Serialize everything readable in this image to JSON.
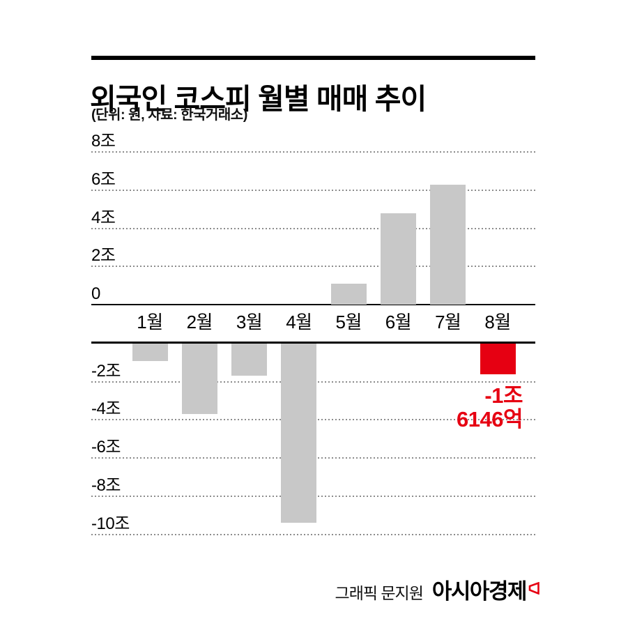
{
  "header": {
    "title": "외국인 코스피 월별 매매 추이",
    "subtitle": "(단위: 원, 자료: 한국거래소)"
  },
  "chart_data": {
    "type": "bar",
    "title": "외국인 코스피 월별 매매 추이",
    "unit_note": "(단위: 원, 자료: 한국거래소)",
    "unit": "조 원 (trillion KRW)",
    "categories": [
      "1월",
      "2월",
      "3월",
      "4월",
      "5월",
      "6월",
      "7월",
      "8월"
    ],
    "values": [
      -0.9,
      -3.7,
      -1.7,
      -9.4,
      1.1,
      4.8,
      6.3,
      -1.6146
    ],
    "y_ticks": [
      {
        "value": 8,
        "label": "8조"
      },
      {
        "value": 6,
        "label": "6조"
      },
      {
        "value": 4,
        "label": "4조"
      },
      {
        "value": 2,
        "label": "2조"
      },
      {
        "value": 0,
        "label": "0"
      },
      {
        "value": -2,
        "label": "-2조"
      },
      {
        "value": -4,
        "label": "-4조"
      },
      {
        "value": -6,
        "label": "-6조"
      },
      {
        "value": -8,
        "label": "-8조"
      },
      {
        "value": -10,
        "label": "-10조"
      }
    ],
    "ylim": [
      -11,
      9
    ],
    "grid": "dotted horizontal, legend none",
    "bar_color": "#c8c8c8",
    "highlight_index": 7,
    "highlight_color": "#e60012",
    "annotation": {
      "applies_to": "8월",
      "line1": "-1조",
      "line2": "6146억",
      "color": "#e60012"
    }
  },
  "footer": {
    "credit": "그래픽 문지원",
    "brand": "아시아경제",
    "brand_mark_icon": "asiae-flag-icon"
  }
}
